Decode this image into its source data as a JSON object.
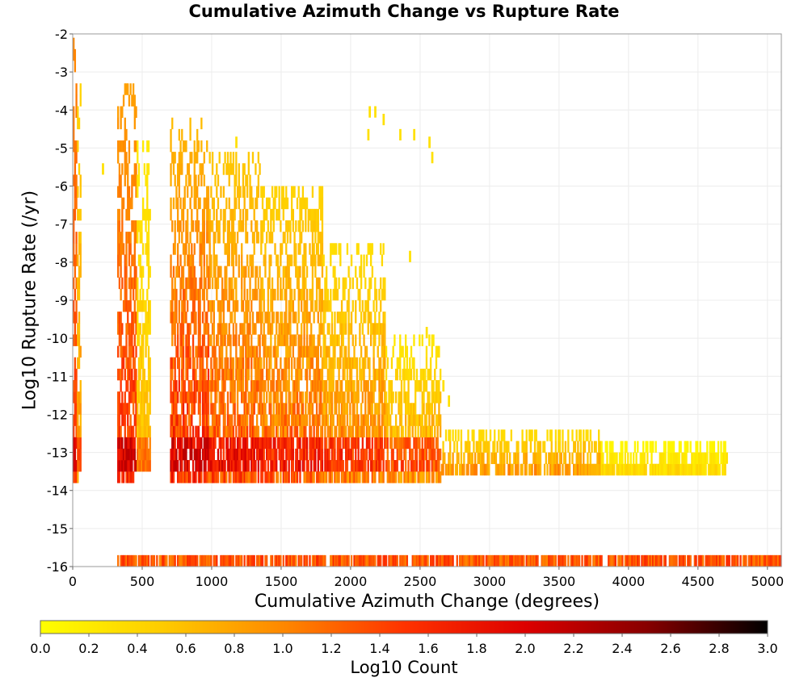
{
  "chart_data": {
    "type": "heatmap",
    "title": "Cumulative Azimuth Change vs Rupture Rate",
    "xlabel": "Cumulative Azimuth Change (degrees)",
    "ylabel": "Log10 Rupture Rate (/yr)",
    "xlim": [
      0,
      5100
    ],
    "ylim": [
      -16,
      -2
    ],
    "xticks": [
      0,
      500,
      1000,
      1500,
      2000,
      2500,
      3000,
      3500,
      4000,
      4500,
      5000
    ],
    "yticks": [
      -2,
      -3,
      -4,
      -5,
      -6,
      -7,
      -8,
      -9,
      -10,
      -11,
      -12,
      -13,
      -14,
      -15,
      -16
    ],
    "grid": true,
    "colorbar": {
      "label": "Log10 Count",
      "range": [
        0.0,
        3.0
      ],
      "ticks": [
        "0.0",
        "0.2",
        "0.4",
        "0.6",
        "0.8",
        "1.0",
        "1.2",
        "1.4",
        "1.6",
        "1.8",
        "2.0",
        "2.2",
        "2.4",
        "2.6",
        "2.8",
        "3.0"
      ],
      "colors": [
        "#ffff00",
        "#ffcc00",
        "#ff8800",
        "#ff3300",
        "#dd0000",
        "#880000",
        "#000000"
      ],
      "placement": "bottom"
    },
    "bin_width_degrees": 30,
    "bin_height_log10": 0.3,
    "regions": [
      {
        "x": [
          0,
          30
        ],
        "y": [
          -13.8,
          -2.2
        ],
        "level": [
          1.0,
          1.7
        ]
      },
      {
        "x": [
          30,
          60
        ],
        "y": [
          -13.8,
          -3.2
        ],
        "level": [
          0.4,
          1.1
        ]
      },
      {
        "x": [
          320,
          460
        ],
        "y": [
          -13.8,
          -3.3
        ],
        "level": [
          0.8,
          1.9
        ]
      },
      {
        "x": [
          460,
          560
        ],
        "y": [
          -13.5,
          -5.0
        ],
        "level": [
          0.2,
          0.8
        ]
      },
      {
        "x": [
          700,
          980
        ],
        "y": [
          -13.8,
          -4.3
        ],
        "level": [
          0.6,
          2.0
        ]
      },
      {
        "x": [
          980,
          1350
        ],
        "y": [
          -13.8,
          -5.2
        ],
        "level": [
          0.5,
          1.7
        ]
      },
      {
        "x": [
          1350,
          1800
        ],
        "y": [
          -13.8,
          -6.0
        ],
        "level": [
          0.4,
          1.6
        ]
      },
      {
        "x": [
          1800,
          2250
        ],
        "y": [
          -13.8,
          -7.5
        ],
        "level": [
          0.3,
          1.4
        ]
      },
      {
        "x": [
          2250,
          2650
        ],
        "y": [
          -13.8,
          -10.0
        ],
        "level": [
          0.2,
          1.2
        ]
      },
      {
        "x": [
          2650,
          3800
        ],
        "y": [
          -13.6,
          -12.6
        ],
        "level": [
          0.3,
          1.1
        ]
      },
      {
        "x": [
          3800,
          4700
        ],
        "y": [
          -13.6,
          -12.8
        ],
        "level": [
          0.0,
          0.5
        ]
      },
      {
        "x": [
          320,
          5100
        ],
        "y": [
          -16.0,
          -15.8
        ],
        "level": [
          0.6,
          1.6
        ]
      }
    ],
    "sparse_points": [
      [
        2130,
        -4.2
      ],
      [
        2170,
        -4.2
      ],
      [
        2230,
        -4.4
      ],
      [
        2120,
        -4.8
      ],
      [
        2350,
        -4.8
      ],
      [
        2450,
        -4.8
      ],
      [
        2560,
        -5.0
      ],
      [
        2580,
        -5.4
      ],
      [
        2420,
        -8.0
      ],
      [
        2540,
        -10.0
      ],
      [
        2660,
        -11.4
      ],
      [
        2700,
        -11.8
      ],
      [
        4500,
        -13.3
      ],
      [
        4700,
        -13.3
      ],
      [
        210,
        -5.7
      ],
      [
        1170,
        -5.0
      ]
    ]
  }
}
